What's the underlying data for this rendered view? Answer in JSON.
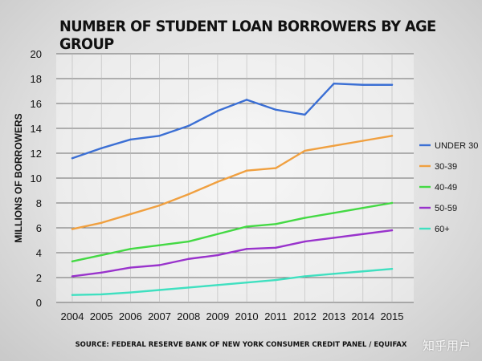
{
  "chart_data": {
    "type": "line",
    "title": "NUMBER OF STUDENT LOAN BORROWERS BY AGE GROUP",
    "xlabel": "",
    "ylabel": "MILLIONS OF BORROWERS",
    "ylim": [
      0,
      20
    ],
    "yticks": [
      0,
      2,
      4,
      6,
      8,
      10,
      12,
      14,
      16,
      18,
      20
    ],
    "grid": true,
    "legend_position": "right",
    "x": [
      "2004",
      "2005",
      "2006",
      "2007",
      "2008",
      "2009",
      "2010",
      "2011",
      "2012",
      "2013",
      "2014",
      "2015"
    ],
    "series": [
      {
        "name": "UNDER 30",
        "color": "#3b6fd4",
        "values": [
          11.6,
          12.4,
          13.1,
          13.4,
          14.2,
          15.4,
          16.3,
          15.5,
          15.1,
          17.6,
          17.5,
          17.5
        ]
      },
      {
        "name": "30-39",
        "color": "#f0a040",
        "values": [
          5.9,
          6.4,
          7.1,
          7.8,
          8.7,
          9.7,
          10.6,
          10.8,
          12.2,
          12.6,
          13.0,
          13.4
        ]
      },
      {
        "name": "40-49",
        "color": "#44d944",
        "values": [
          3.3,
          3.8,
          4.3,
          4.6,
          4.9,
          5.5,
          6.1,
          6.3,
          6.8,
          7.2,
          7.6,
          8.0
        ]
      },
      {
        "name": "50-59",
        "color": "#9933cc",
        "values": [
          2.1,
          2.4,
          2.8,
          3.0,
          3.5,
          3.8,
          4.3,
          4.4,
          4.9,
          5.2,
          5.5,
          5.8
        ]
      },
      {
        "name": "60+",
        "color": "#3fe0c0",
        "values": [
          0.6,
          0.65,
          0.8,
          1.0,
          1.2,
          1.4,
          1.6,
          1.8,
          2.1,
          2.3,
          2.5,
          2.7
        ]
      }
    ]
  },
  "source": "SOURCE: FEDERAL RESERVE BANK OF NEW YORK CONSUMER CREDIT PANEL / EQUIFAX",
  "watermark": "知乎用户"
}
